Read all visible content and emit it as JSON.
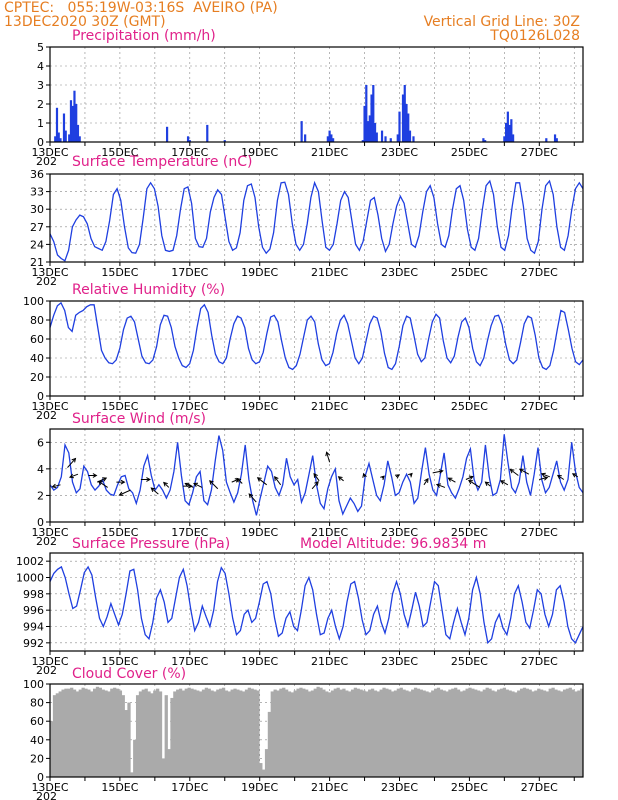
{
  "header": {
    "line1": "CPTEC:   055:19W-03:16S  AVEIRO (PA)",
    "line2": "13DEC2020 30Z (GMT)",
    "right1": "Vertical Grid Line: 30Z",
    "right2": "TQ0126L028"
  },
  "colors": {
    "header": "#e67e22",
    "title": "#e0218a",
    "series": "#1f3fe0",
    "cloud": "#aaaaaa",
    "arrow": "#000000"
  },
  "x_axis": {
    "tick_labels": [
      "13DEC",
      "15DEC",
      "17DEC",
      "19DEC",
      "21DEC",
      "23DEC",
      "25DEC",
      "27DEC"
    ],
    "year_fragment": "202"
  },
  "chart_data": [
    {
      "id": "precip",
      "type": "bar",
      "title": "Precipitation (mm/h)",
      "ylim": [
        0,
        5
      ],
      "yticks": [
        0,
        1,
        2,
        3,
        4,
        5
      ],
      "x_range_days": [
        13,
        28.25
      ],
      "bars": [
        [
          13.15,
          0.3
        ],
        [
          13.2,
          1.8
        ],
        [
          13.25,
          0.5
        ],
        [
          13.3,
          0.2
        ],
        [
          13.4,
          1.5
        ],
        [
          13.45,
          0.6
        ],
        [
          13.55,
          0.4
        ],
        [
          13.6,
          2.2
        ],
        [
          13.65,
          1.9
        ],
        [
          13.7,
          2.7
        ],
        [
          13.75,
          2.0
        ],
        [
          13.8,
          0.9
        ],
        [
          13.85,
          0.3
        ],
        [
          16.35,
          0.8
        ],
        [
          16.95,
          0.3
        ],
        [
          17.0,
          0.1
        ],
        [
          17.5,
          0.9
        ],
        [
          18.0,
          0.1
        ],
        [
          20.2,
          1.1
        ],
        [
          20.3,
          0.4
        ],
        [
          20.95,
          0.3
        ],
        [
          21.0,
          0.6
        ],
        [
          21.05,
          0.4
        ],
        [
          21.1,
          0.2
        ],
        [
          21.95,
          0.1
        ],
        [
          22.0,
          1.9
        ],
        [
          22.05,
          3.0
        ],
        [
          22.1,
          1.1
        ],
        [
          22.15,
          1.4
        ],
        [
          22.2,
          2.5
        ],
        [
          22.25,
          3.0
        ],
        [
          22.3,
          1.0
        ],
        [
          22.35,
          0.5
        ],
        [
          22.5,
          0.6
        ],
        [
          22.6,
          0.3
        ],
        [
          22.75,
          0.2
        ],
        [
          22.95,
          0.4
        ],
        [
          23.0,
          1.6
        ],
        [
          23.1,
          2.5
        ],
        [
          23.15,
          3.0
        ],
        [
          23.2,
          2.0
        ],
        [
          23.25,
          1.5
        ],
        [
          23.3,
          0.6
        ],
        [
          23.4,
          0.3
        ],
        [
          25.4,
          0.2
        ],
        [
          25.45,
          0.1
        ],
        [
          26.0,
          0.3
        ],
        [
          26.05,
          1.0
        ],
        [
          26.1,
          1.6
        ],
        [
          26.15,
          0.9
        ],
        [
          26.2,
          1.2
        ],
        [
          26.25,
          0.4
        ],
        [
          27.2,
          0.2
        ],
        [
          27.45,
          0.4
        ],
        [
          27.5,
          0.2
        ]
      ]
    },
    {
      "id": "temp",
      "type": "line",
      "title": "Surface Temperature (nC)",
      "ylim": [
        21,
        36
      ],
      "yticks": [
        21,
        24,
        27,
        30,
        33,
        36
      ],
      "x_range_days": [
        13,
        28.25
      ],
      "y": [
        25.8,
        24.5,
        22.2,
        21.6,
        21.2,
        23.0,
        27.0,
        28.2,
        29.0,
        28.7,
        27.5,
        25.0,
        23.6,
        23.3,
        23.0,
        24.5,
        28.0,
        32.5,
        33.5,
        31.5,
        27.0,
        23.4,
        22.6,
        22.5,
        24.0,
        28.5,
        33.5,
        34.5,
        33.5,
        30.5,
        25.5,
        23.0,
        22.8,
        23.0,
        25.5,
        30.0,
        33.5,
        33.8,
        31.0,
        25.0,
        23.6,
        23.5,
        25.0,
        29.5,
        32.0,
        33.3,
        32.5,
        28.5,
        24.5,
        23.0,
        23.4,
        26.0,
        31.5,
        34.0,
        34.3,
        32.0,
        27.0,
        23.5,
        22.5,
        23.2,
        26.0,
        31.5,
        34.5,
        34.6,
        32.5,
        27.5,
        24.0,
        23.0,
        24.0,
        27.5,
        32.0,
        34.5,
        33.0,
        28.0,
        23.5,
        23.0,
        24.0,
        27.5,
        31.5,
        33.0,
        32.0,
        28.0,
        24.0,
        23.0,
        24.5,
        28.0,
        31.5,
        32.0,
        29.0,
        25.0,
        22.8,
        24.0,
        27.5,
        30.5,
        32.2,
        31.0,
        27.5,
        24.0,
        23.5,
        25.5,
        29.5,
        33.0,
        34.0,
        32.0,
        27.5,
        24.0,
        23.5,
        25.5,
        30.0,
        33.5,
        34.0,
        31.5,
        26.5,
        23.5,
        23.0,
        25.0,
        30.0,
        34.0,
        34.8,
        32.5,
        27.0,
        23.5,
        23.0,
        25.5,
        30.5,
        34.5,
        34.5,
        30.5,
        25.0,
        23.0,
        22.5,
        24.5,
        30.0,
        34.0,
        34.8,
        32.5,
        27.0,
        23.5,
        23.0,
        25.5,
        30.0,
        33.5,
        34.5,
        33.5
      ]
    },
    {
      "id": "rh",
      "type": "line",
      "title": "Relative Humidity (%)",
      "ylim": [
        0,
        100
      ],
      "yticks": [
        0,
        20,
        40,
        60,
        80,
        100
      ],
      "x_range_days": [
        13,
        28.25
      ],
      "y": [
        72,
        85,
        95,
        98,
        90,
        72,
        68,
        85,
        88,
        90,
        94,
        96,
        96,
        72,
        48,
        40,
        35,
        34,
        38,
        50,
        70,
        82,
        84,
        78,
        60,
        42,
        35,
        34,
        38,
        52,
        75,
        85,
        84,
        72,
        52,
        40,
        32,
        30,
        34,
        48,
        72,
        92,
        96,
        88,
        64,
        44,
        36,
        34,
        40,
        60,
        76,
        84,
        82,
        72,
        50,
        38,
        34,
        36,
        46,
        66,
        83,
        85,
        78,
        58,
        40,
        30,
        28,
        32,
        44,
        62,
        80,
        84,
        78,
        55,
        38,
        32,
        34,
        46,
        66,
        80,
        85,
        76,
        58,
        40,
        34,
        40,
        58,
        76,
        84,
        82,
        68,
        45,
        30,
        28,
        34,
        52,
        74,
        84,
        82,
        64,
        44,
        36,
        40,
        60,
        78,
        86,
        82,
        58,
        40,
        35,
        42,
        62,
        78,
        82,
        72,
        50,
        36,
        32,
        40,
        58,
        74,
        84,
        85,
        75,
        54,
        38,
        34,
        38,
        56,
        76,
        84,
        82,
        64,
        40,
        30,
        28,
        32,
        48,
        70,
        90,
        88,
        70,
        50,
        36,
        33,
        38
      ]
    },
    {
      "id": "wind",
      "type": "line",
      "title": "Surface Wind (m/s)",
      "ylim": [
        0,
        7
      ],
      "yticks": [
        0,
        2,
        4,
        6
      ],
      "x_range_days": [
        13,
        28.25
      ],
      "y": [
        2.8,
        2.4,
        2.6,
        3.4,
        5.8,
        5.2,
        3.0,
        2.2,
        2.5,
        4.2,
        3.8,
        2.8,
        2.4,
        2.7,
        3.2,
        2.4,
        2.1,
        2.0,
        2.8,
        3.4,
        3.5,
        2.5,
        2.2,
        1.4,
        2.4,
        4.2,
        5.0,
        3.5,
        2.4,
        2.8,
        2.4,
        1.8,
        2.4,
        3.8,
        6.0,
        3.5,
        1.6,
        1.3,
        2.2,
        3.4,
        3.8,
        1.6,
        1.3,
        2.4,
        4.6,
        6.5,
        5.4,
        3.0,
        2.2,
        1.5,
        2.2,
        3.6,
        5.8,
        3.2,
        1.6,
        0.5,
        1.8,
        3.0,
        4.2,
        3.8,
        2.6,
        2.0,
        2.8,
        4.8,
        3.4,
        2.8,
        3.2,
        1.5,
        2.2,
        3.6,
        5.0,
        2.8,
        1.4,
        1.0,
        2.5,
        3.4,
        4.0,
        1.6,
        0.6,
        1.2,
        1.8,
        1.4,
        0.8,
        1.2,
        3.5,
        4.4,
        3.2,
        2.0,
        1.6,
        2.8,
        4.6,
        3.4,
        2.0,
        2.2,
        3.0,
        3.6,
        3.0,
        1.4,
        1.8,
        3.8,
        5.6,
        3.6,
        2.4,
        2.0,
        3.6,
        5.2,
        2.8,
        2.2,
        1.8,
        2.5,
        3.4,
        4.8,
        5.5,
        3.2,
        2.4,
        3.0,
        5.8,
        3.4,
        2.0,
        2.2,
        3.2,
        6.6,
        4.5,
        2.6,
        2.2,
        3.0,
        5.0,
        3.0,
        2.0,
        3.6,
        5.6,
        3.2,
        2.2,
        2.6,
        3.6,
        4.6,
        3.0,
        2.4,
        3.2,
        6.0,
        3.8,
        2.6,
        2.2
      ],
      "arrows": [
        [
          13.3,
          2.8,
          -8,
          2
        ],
        [
          13.5,
          4.1,
          8,
          -9
        ],
        [
          13.8,
          3.6,
          -8,
          3
        ],
        [
          14.1,
          3.5,
          8,
          0
        ],
        [
          14.35,
          3.0,
          9,
          -4
        ],
        [
          14.65,
          2.6,
          -9,
          -6
        ],
        [
          14.9,
          3.0,
          8,
          0
        ],
        [
          15.3,
          2.4,
          -11,
          5
        ],
        [
          15.6,
          3.2,
          9,
          0
        ],
        [
          16.1,
          2.1,
          -7,
          -6
        ],
        [
          16.4,
          2.6,
          -5,
          -5
        ],
        [
          16.8,
          2.7,
          9,
          0
        ],
        [
          17.1,
          2.6,
          -8,
          -4
        ],
        [
          17.35,
          2.6,
          -8,
          -4
        ],
        [
          17.8,
          2.5,
          -8,
          -8
        ],
        [
          18.2,
          3.0,
          7,
          -3
        ],
        [
          18.5,
          2.9,
          -5,
          -5
        ],
        [
          18.9,
          1.5,
          -7,
          -8
        ],
        [
          19.2,
          2.8,
          -9,
          -7
        ],
        [
          19.6,
          2.8,
          -6,
          -8
        ],
        [
          20.5,
          2.5,
          6,
          -7
        ],
        [
          20.7,
          3.1,
          -5,
          -7
        ],
        [
          21.0,
          4.5,
          -3,
          -10
        ],
        [
          21.4,
          3.1,
          -5,
          -4
        ],
        [
          22.0,
          3.4,
          -1,
          -3
        ],
        [
          22.5,
          3.3,
          2,
          -2
        ],
        [
          22.9,
          3.4,
          3,
          -2
        ],
        [
          23.3,
          3.5,
          2,
          -2
        ],
        [
          23.7,
          2.8,
          4,
          -6
        ],
        [
          23.95,
          3.7,
          10,
          -2
        ],
        [
          24.3,
          2.6,
          -8,
          -3
        ],
        [
          24.6,
          3.0,
          -7,
          -4
        ],
        [
          24.9,
          3.2,
          7,
          -3
        ],
        [
          25.3,
          2.6,
          -11,
          -7
        ],
        [
          25.6,
          2.7,
          -5,
          -4
        ],
        [
          26.1,
          2.8,
          -7,
          -4
        ],
        [
          26.4,
          3.5,
          -8,
          -6
        ],
        [
          26.7,
          3.6,
          -9,
          -5
        ],
        [
          27.0,
          3.2,
          8,
          -2
        ],
        [
          27.3,
          3.4,
          -8,
          -3
        ],
        [
          27.7,
          3.2,
          -6,
          -4
        ],
        [
          28.1,
          3.4,
          -5,
          -3
        ]
      ]
    },
    {
      "id": "pres",
      "type": "line",
      "title": "Surface Pressure (hPa)",
      "extra_label": "Model Altitude: 96.9834 m",
      "ylim": [
        991,
        1003
      ],
      "yticks": [
        992,
        994,
        996,
        998,
        1000,
        1002
      ],
      "x_range_days": [
        13,
        28.25
      ],
      "y": [
        999.5,
        1000.5,
        1001.0,
        1001.3,
        1000.0,
        998.0,
        996.2,
        996.5,
        998.5,
        1000.6,
        1001.3,
        1000.3,
        997.5,
        995.0,
        994.0,
        995.2,
        996.8,
        995.5,
        994.2,
        995.5,
        998.0,
        1000.8,
        1001.0,
        998.5,
        995.0,
        993.0,
        992.5,
        994.5,
        997.5,
        998.5,
        997.0,
        994.5,
        995.0,
        997.5,
        1000.0,
        1001.0,
        999.0,
        996.0,
        993.5,
        994.5,
        996.5,
        995.2,
        994.0,
        996.0,
        999.5,
        1001.2,
        1000.5,
        998.0,
        995.0,
        993.0,
        993.5,
        995.5,
        996.0,
        994.5,
        995.0,
        997.0,
        999.2,
        999.5,
        998.0,
        995.0,
        992.8,
        993.2,
        995.0,
        995.8,
        994.0,
        993.5,
        996.0,
        999.0,
        1000.0,
        998.5,
        995.5,
        993.0,
        993.2,
        995.0,
        996.0,
        994.0,
        992.5,
        994.0,
        997.0,
        999.2,
        999.5,
        997.5,
        994.8,
        993.0,
        993.5,
        995.5,
        996.5,
        994.5,
        993.2,
        995.0,
        998.0,
        999.5,
        998.0,
        995.5,
        994.0,
        996.0,
        998.2,
        996.5,
        994.0,
        994.5,
        997.0,
        999.5,
        999.0,
        996.0,
        993.0,
        992.5,
        994.5,
        996.2,
        994.5,
        993.0,
        995.0,
        998.5,
        1000.0,
        998.0,
        994.5,
        992.0,
        992.5,
        994.5,
        995.5,
        993.8,
        993.0,
        995.0,
        998.0,
        999.0,
        997.0,
        994.5,
        993.8,
        996.0,
        998.5,
        998.0,
        995.5,
        994.0,
        995.5,
        998.5,
        999.0,
        997.0,
        994.0,
        992.5,
        992.0,
        993.0,
        994.0
      ]
    },
    {
      "id": "cloud",
      "type": "area",
      "title": "Cloud Cover (%)",
      "ylim": [
        0,
        100
      ],
      "yticks": [
        0,
        20,
        40,
        60,
        80,
        100
      ],
      "x_range_days": [
        13,
        28.25
      ],
      "y": [
        60,
        88,
        90,
        92,
        94,
        95,
        95,
        96,
        94,
        92,
        94,
        96,
        95,
        94,
        92,
        95,
        97,
        96,
        94,
        93,
        92,
        95,
        96,
        95,
        93,
        88,
        72,
        80,
        5,
        40,
        88,
        92,
        94,
        95,
        92,
        90,
        93,
        95,
        92,
        20,
        88,
        30,
        85,
        92,
        94,
        95,
        93,
        95,
        96,
        95,
        94,
        93,
        92,
        94,
        96,
        95,
        93,
        92,
        94,
        95,
        96,
        93,
        92,
        94,
        95,
        94,
        93,
        92,
        94,
        96,
        95,
        94,
        93,
        15,
        8,
        30,
        70,
        92,
        94,
        93,
        95,
        96,
        94,
        92,
        91,
        93,
        95,
        96,
        95,
        94,
        92,
        93,
        95,
        97,
        96,
        94,
        92,
        91,
        93,
        95,
        96,
        94,
        95,
        93,
        92,
        94,
        96,
        95,
        94,
        93,
        92,
        94,
        95,
        93,
        92,
        94,
        96,
        95,
        94,
        92,
        93,
        95,
        96,
        94,
        93,
        92,
        94,
        96,
        95,
        94,
        93,
        92,
        91,
        93,
        95,
        96,
        94,
        93,
        92,
        94,
        95,
        96,
        94,
        92,
        93,
        95,
        96,
        95,
        94,
        93,
        92,
        94,
        96,
        95,
        93,
        92,
        94,
        95,
        96,
        94,
        93,
        92,
        91,
        93,
        95,
        96,
        95,
        94,
        92,
        93,
        95,
        94,
        93,
        92,
        95,
        96,
        94,
        93,
        92,
        94,
        95,
        96,
        94,
        92,
        93,
        95
      ]
    }
  ]
}
